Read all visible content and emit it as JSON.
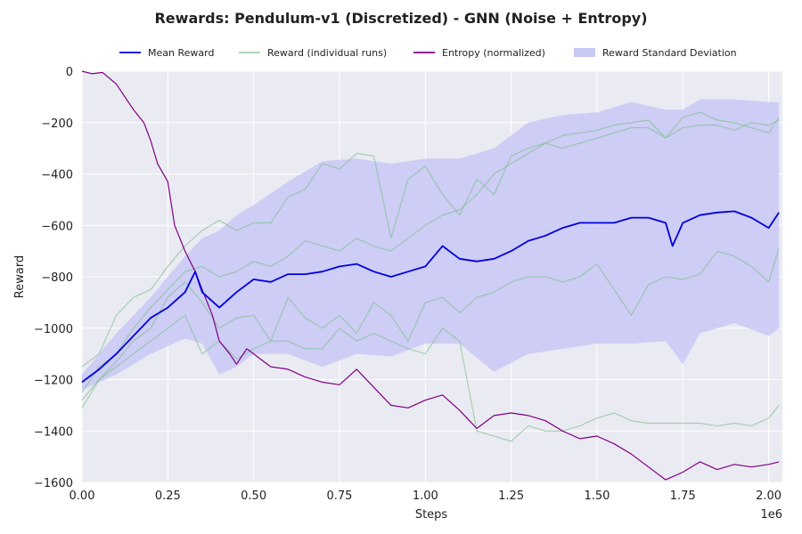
{
  "chart_data": {
    "type": "line",
    "title": "Rewards: Pendulum-v1 (Discretized) - GNN (Noise + Entropy)",
    "xlabel": "Steps",
    "ylabel": "Reward",
    "x_scale_label": "1e6",
    "xlim": [
      0,
      2.04
    ],
    "ylim": [
      -1600,
      0
    ],
    "x_ticks": [
      0,
      0.25,
      0.5,
      0.75,
      1.0,
      1.25,
      1.5,
      1.75,
      2.0
    ],
    "x_tick_labels": [
      "0.00",
      "0.25",
      "0.50",
      "0.75",
      "1.00",
      "1.25",
      "1.50",
      "1.75",
      "2.00"
    ],
    "y_ticks": [
      0,
      -200,
      -400,
      -600,
      -800,
      -1000,
      -1200,
      -1400,
      -1600
    ],
    "y_tick_labels": [
      "0",
      "−200",
      "−400",
      "−600",
      "−800",
      "−1000",
      "−1200",
      "−1400",
      "−1600"
    ],
    "grid": true,
    "legend_placement": "top-center",
    "colors": {
      "background": "#eaeaf2",
      "mean": "#0000dd",
      "runs": "#7fbf8f",
      "entropy": "#800080",
      "band": "#c8c8f6"
    },
    "legend": [
      {
        "label": "Mean Reward",
        "kind": "line",
        "color": "#0000dd"
      },
      {
        "label": "Reward (individual runs)",
        "kind": "line",
        "color": "#9fcfa8"
      },
      {
        "label": "Entropy (normalized)",
        "kind": "line",
        "color": "#800080"
      },
      {
        "label": "Reward Standard Deviation",
        "kind": "patch",
        "color": "#c8c8f6"
      }
    ],
    "series": [
      {
        "name": "Mean Reward",
        "x": [
          0,
          0.05,
          0.1,
          0.15,
          0.2,
          0.25,
          0.3,
          0.33,
          0.35,
          0.4,
          0.45,
          0.5,
          0.55,
          0.6,
          0.65,
          0.7,
          0.75,
          0.8,
          0.85,
          0.9,
          0.95,
          1.0,
          1.05,
          1.1,
          1.15,
          1.2,
          1.25,
          1.3,
          1.35,
          1.4,
          1.45,
          1.5,
          1.55,
          1.6,
          1.65,
          1.7,
          1.72,
          1.75,
          1.8,
          1.85,
          1.9,
          1.95,
          2.0,
          2.03
        ],
        "y": [
          -1210,
          -1160,
          -1100,
          -1030,
          -960,
          -920,
          -860,
          -780,
          -860,
          -920,
          -860,
          -810,
          -820,
          -790,
          -790,
          -780,
          -760,
          -750,
          -780,
          -800,
          -780,
          -760,
          -680,
          -730,
          -740,
          -730,
          -700,
          -660,
          -640,
          -610,
          -590,
          -590,
          -590,
          -570,
          -570,
          -590,
          -680,
          -590,
          -560,
          -550,
          -545,
          -570,
          -610,
          -550
        ]
      },
      {
        "name": "Reward (individual runs)",
        "x": [
          0,
          0.05,
          0.1,
          0.15,
          0.2,
          0.25,
          0.3,
          0.35,
          0.4,
          0.45,
          0.5,
          0.55,
          0.6,
          0.65,
          0.7,
          0.75,
          0.8,
          0.85,
          0.9,
          0.95,
          1.0,
          1.05,
          1.1,
          1.15,
          1.2,
          1.25,
          1.3,
          1.35,
          1.4,
          1.45,
          1.5,
          1.55,
          1.6,
          1.65,
          1.7,
          1.75,
          1.8,
          1.85,
          1.9,
          1.95,
          2.0,
          2.03
        ],
        "y": [
          -1150,
          -1100,
          -950,
          -880,
          -850,
          -760,
          -680,
          -620,
          -580,
          -620,
          -590,
          -590,
          -490,
          -460,
          -360,
          -380,
          -320,
          -330,
          -650,
          -420,
          -370,
          -480,
          -560,
          -420,
          -480,
          -330,
          -300,
          -280,
          -250,
          -240,
          -230,
          -210,
          -200,
          -190,
          -260,
          -180,
          -160,
          -190,
          -200,
          -220,
          -240,
          -180
        ]
      },
      {
        "name": "Reward (individual runs)",
        "x": [
          0,
          0.05,
          0.1,
          0.15,
          0.2,
          0.25,
          0.3,
          0.35,
          0.4,
          0.45,
          0.5,
          0.55,
          0.6,
          0.65,
          0.7,
          0.75,
          0.8,
          0.85,
          0.9,
          0.95,
          1.0,
          1.05,
          1.1,
          1.15,
          1.2,
          1.25,
          1.3,
          1.35,
          1.4,
          1.45,
          1.5,
          1.55,
          1.6,
          1.65,
          1.7,
          1.75,
          1.8,
          1.85,
          1.9,
          1.95,
          2.0,
          2.03
        ],
        "y": [
          -1250,
          -1150,
          -1100,
          -1000,
          -920,
          -850,
          -780,
          -760,
          -800,
          -780,
          -740,
          -760,
          -720,
          -660,
          -680,
          -700,
          -650,
          -680,
          -700,
          -650,
          -600,
          -560,
          -540,
          -480,
          -400,
          -360,
          -320,
          -280,
          -300,
          -280,
          -260,
          -240,
          -220,
          -220,
          -260,
          -220,
          -210,
          -210,
          -230,
          -200,
          -210,
          -190
        ]
      },
      {
        "name": "Reward (individual runs)",
        "x": [
          0,
          0.05,
          0.1,
          0.15,
          0.2,
          0.25,
          0.3,
          0.35,
          0.4,
          0.45,
          0.5,
          0.55,
          0.6,
          0.65,
          0.7,
          0.75,
          0.8,
          0.85,
          0.9,
          0.95,
          1.0,
          1.05,
          1.1,
          1.15,
          1.2,
          1.25,
          1.3,
          1.35,
          1.4,
          1.45,
          1.5,
          1.55,
          1.6,
          1.65,
          1.7,
          1.75,
          1.8,
          1.85,
          1.9,
          1.95,
          2.0,
          2.03
        ],
        "y": [
          -1280,
          -1200,
          -1130,
          -1050,
          -1000,
          -880,
          -820,
          -900,
          -1000,
          -960,
          -950,
          -1050,
          -880,
          -960,
          -1000,
          -950,
          -1020,
          -900,
          -950,
          -1050,
          -900,
          -880,
          -940,
          -880,
          -860,
          -820,
          -800,
          -800,
          -820,
          -800,
          -750,
          -850,
          -950,
          -830,
          -800,
          -810,
          -790,
          -700,
          -720,
          -760,
          -820,
          -690
        ]
      },
      {
        "name": "Reward (individual runs)",
        "x": [
          0,
          0.05,
          0.1,
          0.15,
          0.2,
          0.25,
          0.3,
          0.35,
          0.4,
          0.45,
          0.5,
          0.55,
          0.6,
          0.65,
          0.7,
          0.75,
          0.8,
          0.85,
          0.9,
          0.95,
          1.0,
          1.05,
          1.1,
          1.15,
          1.2,
          1.25,
          1.3,
          1.35,
          1.4,
          1.45,
          1.5,
          1.55,
          1.6,
          1.65,
          1.7,
          1.75,
          1.8,
          1.85,
          1.9,
          1.95,
          2.0,
          2.03
        ],
        "y": [
          -1310,
          -1200,
          -1150,
          -1100,
          -1050,
          -1000,
          -950,
          -1100,
          -1050,
          -1120,
          -1080,
          -1050,
          -1050,
          -1080,
          -1080,
          -1000,
          -1050,
          -1020,
          -1050,
          -1080,
          -1100,
          -1000,
          -1050,
          -1400,
          -1420,
          -1440,
          -1380,
          -1400,
          -1400,
          -1380,
          -1350,
          -1330,
          -1360,
          -1370,
          -1370,
          -1370,
          -1370,
          -1380,
          -1370,
          -1380,
          -1350,
          -1300
        ]
      },
      {
        "name": "Entropy (normalized)",
        "x": [
          0,
          0.03,
          0.06,
          0.1,
          0.15,
          0.18,
          0.2,
          0.22,
          0.25,
          0.27,
          0.3,
          0.33,
          0.35,
          0.38,
          0.4,
          0.43,
          0.45,
          0.48,
          0.5,
          0.55,
          0.6,
          0.65,
          0.7,
          0.75,
          0.8,
          0.85,
          0.9,
          0.95,
          1.0,
          1.05,
          1.1,
          1.15,
          1.2,
          1.25,
          1.3,
          1.35,
          1.4,
          1.45,
          1.5,
          1.55,
          1.6,
          1.65,
          1.7,
          1.75,
          1.8,
          1.85,
          1.9,
          1.95,
          2.0,
          2.03
        ],
        "y": [
          0,
          -10,
          -5,
          -50,
          -150,
          -200,
          -270,
          -360,
          -430,
          -600,
          -700,
          -780,
          -850,
          -950,
          -1050,
          -1100,
          -1140,
          -1080,
          -1100,
          -1150,
          -1160,
          -1190,
          -1210,
          -1220,
          -1160,
          -1230,
          -1300,
          -1310,
          -1280,
          -1260,
          -1320,
          -1390,
          -1340,
          -1330,
          -1340,
          -1360,
          -1400,
          -1430,
          -1420,
          -1450,
          -1490,
          -1540,
          -1590,
          -1560,
          -1520,
          -1550,
          -1530,
          -1540,
          -1530,
          -1520
        ]
      }
    ],
    "std_band": {
      "x": [
        0,
        0.1,
        0.2,
        0.3,
        0.35,
        0.4,
        0.45,
        0.5,
        0.6,
        0.7,
        0.8,
        0.9,
        1.0,
        1.1,
        1.2,
        1.3,
        1.4,
        1.5,
        1.6,
        1.7,
        1.75,
        1.8,
        1.9,
        2.0,
        2.03
      ],
      "upper": [
        -1180,
        -1020,
        -880,
        -720,
        -650,
        -620,
        -560,
        -520,
        -430,
        -350,
        -340,
        -360,
        -340,
        -340,
        -300,
        -200,
        -170,
        -160,
        -120,
        -150,
        -150,
        -110,
        -110,
        -120,
        -120
      ],
      "lower": [
        -1240,
        -1180,
        -1100,
        -1040,
        -1060,
        -1180,
        -1150,
        -1100,
        -1100,
        -1150,
        -1100,
        -1110,
        -1060,
        -1060,
        -1170,
        -1100,
        -1080,
        -1060,
        -1060,
        -1050,
        -1140,
        -1020,
        -980,
        -1030,
        -1000
      ]
    }
  }
}
